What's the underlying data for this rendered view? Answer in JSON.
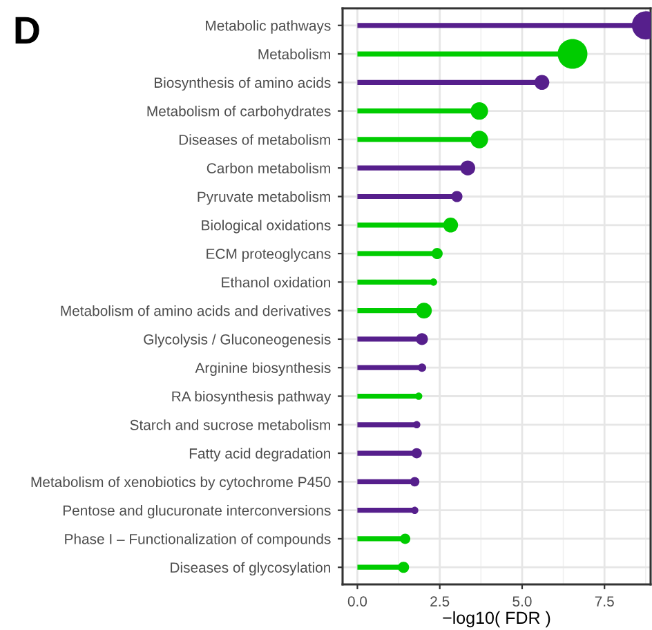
{
  "chart_data": {
    "type": "lollipop",
    "orientation": "horizontal",
    "xlabel": "−log10( FDR )",
    "annotations": [
      "D"
    ],
    "categories": [
      "Metabolic pathways",
      "Metabolism",
      "Biosynthesis of amino acids",
      "Metabolism of carbohydrates",
      "Diseases of metabolism",
      "Carbon metabolism",
      "Pyruvate metabolism",
      "Biological oxidations",
      "ECM proteoglycans",
      "Ethanol oxidation",
      "Metabolism of amino acids and derivatives",
      "Glycolysis / Gluconeogenesis",
      "Arginine biosynthesis",
      "RA biosynthesis pathway",
      "Starch and sucrose metabolism",
      "Fatty acid degradation",
      "Metabolism of xenobiotics by cytochrome P450",
      "Pentose and glucuronate interconversions",
      "Phase I – Functionalization of compounds",
      "Diseases of glycosylation"
    ],
    "values": [
      8.76,
      6.53,
      5.6,
      3.7,
      3.7,
      3.35,
      3.02,
      2.83,
      2.42,
      2.31,
      2.02,
      1.96,
      1.96,
      1.86,
      1.8,
      1.8,
      1.74,
      1.74,
      1.45,
      1.4
    ],
    "sizes": [
      0.9,
      1,
      0.25,
      0.35,
      0.35,
      0.25,
      0.14,
      0.25,
      0.14,
      0.06,
      0.28,
      0.16,
      0.08,
      0.06,
      0.06,
      0.12,
      0.1,
      0.06,
      0.12,
      0.14
    ],
    "colors": [
      "#561f8c",
      "#00cc00",
      "#561f8c",
      "#00cc00",
      "#00cc00",
      "#561f8c",
      "#561f8c",
      "#00cc00",
      "#00cc00",
      "#00cc00",
      "#00cc00",
      "#561f8c",
      "#561f8c",
      "#00cc00",
      "#561f8c",
      "#561f8c",
      "#561f8c",
      "#561f8c",
      "#00cc00",
      "#00cc00"
    ],
    "xlim": [
      -0.45,
      8.9
    ],
    "xticks": [
      {
        "value": 0,
        "label": "0.0"
      },
      2.5,
      {
        "value": 5,
        "label": "5.0"
      },
      7.5
    ],
    "grid": true
  }
}
